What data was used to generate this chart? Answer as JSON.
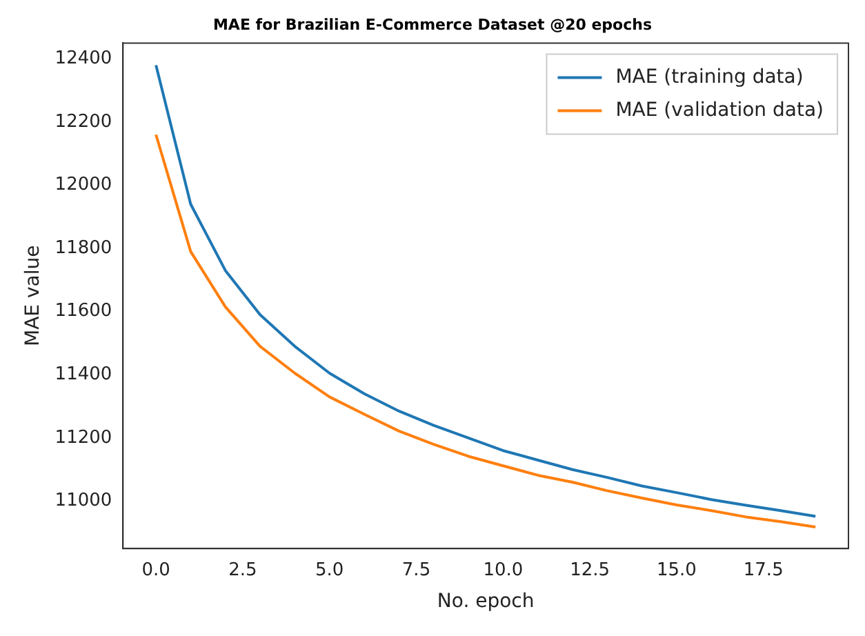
{
  "chart_data": {
    "type": "line",
    "title": "MAE for Brazilian E-Commerce Dataset @20 epochs",
    "xlabel": "No. epoch",
    "ylabel": "MAE value",
    "x": [
      0,
      1,
      2,
      3,
      4,
      5,
      6,
      7,
      8,
      9,
      10,
      11,
      12,
      13,
      14,
      15,
      16,
      17,
      18,
      19
    ],
    "series": [
      {
        "name": "MAE (training data)",
        "color": "#1f77b4",
        "values": [
          12380,
          11940,
          11730,
          11590,
          11490,
          11405,
          11340,
          11285,
          11240,
          11200,
          11160,
          11130,
          11100,
          11075,
          11048,
          11027,
          11005,
          10987,
          10970,
          10952
        ]
      },
      {
        "name": "MAE (validation data)",
        "color": "#ff7f0e",
        "values": [
          12160,
          11790,
          11615,
          11490,
          11405,
          11330,
          11275,
          11222,
          11180,
          11142,
          11112,
          11082,
          11060,
          11033,
          11010,
          10988,
          10970,
          10950,
          10935,
          10918
        ]
      }
    ],
    "xlim": [
      -0.95,
      19.95
    ],
    "xticks": [
      {
        "value": 0,
        "label": "0.0"
      },
      {
        "value": 2.5,
        "label": "2.5"
      },
      {
        "value": 5,
        "label": "5.0"
      },
      {
        "value": 7.5,
        "label": "7.5"
      },
      {
        "value": 10,
        "label": "10.0"
      },
      {
        "value": 12.5,
        "label": "12.5"
      },
      {
        "value": 15,
        "label": "15.0"
      },
      {
        "value": 17.5,
        "label": "17.5"
      }
    ],
    "ylim": [
      10850,
      12450
    ],
    "yticks": [
      11000,
      11200,
      11400,
      11600,
      11800,
      12000,
      12200,
      12400
    ],
    "legend": "top right",
    "grid": false,
    "marker": "none",
    "line_style": "solid"
  }
}
